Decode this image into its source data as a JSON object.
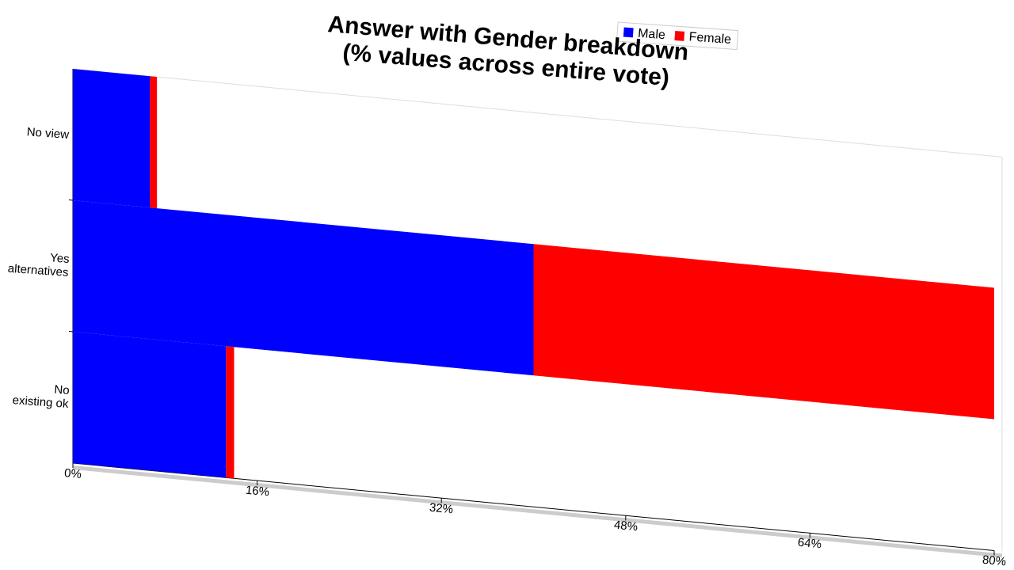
{
  "chart_data": {
    "type": "bar",
    "orientation": "horizontal",
    "stacked": true,
    "title": "Answer with Gender breakdown\n(% values across entire vote)",
    "categories": [
      "No view",
      "Yes\nalternatives",
      "No\nexisting ok"
    ],
    "series": [
      {
        "name": "Male",
        "color": "#0000ff",
        "values": [
          6.7,
          40,
          13.3
        ]
      },
      {
        "name": "Female",
        "color": "#ff0000",
        "values": [
          0.6,
          40,
          0.7
        ]
      }
    ],
    "xlim": [
      0,
      80
    ],
    "xticks": [
      {
        "value": 0,
        "label": "0%"
      },
      {
        "value": 16,
        "label": "16%"
      },
      {
        "value": 32,
        "label": "32%"
      },
      {
        "value": 48,
        "label": "48%"
      },
      {
        "value": 64,
        "label": "64%"
      },
      {
        "value": 80,
        "label": "80%"
      }
    ],
    "legend": "top-right"
  }
}
